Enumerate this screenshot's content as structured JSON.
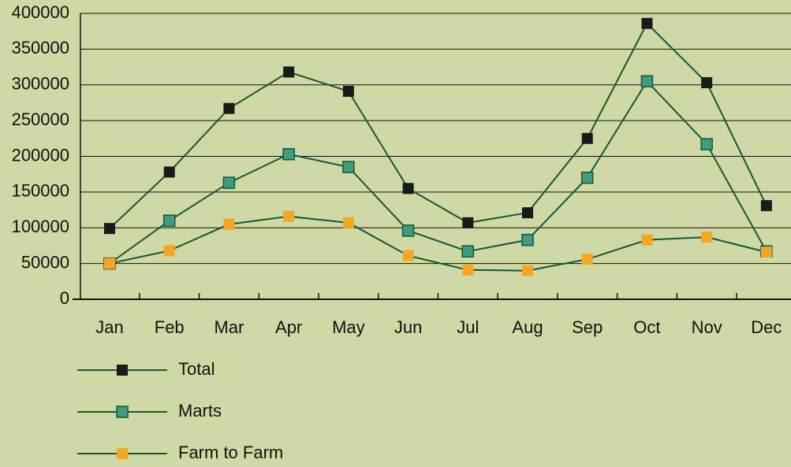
{
  "chart_data": {
    "type": "line",
    "categories": [
      "Jan",
      "Feb",
      "Mar",
      "Apr",
      "May",
      "Jun",
      "Jul",
      "Aug",
      "Sep",
      "Oct",
      "Nov",
      "Dec"
    ],
    "series": [
      {
        "name": "Total",
        "color": "#1a1a1a",
        "values": [
          99000,
          178000,
          267000,
          318000,
          291000,
          155000,
          107000,
          121000,
          225000,
          386000,
          303000,
          131000
        ]
      },
      {
        "name": "Marts",
        "color": "#3f9c80",
        "values": [
          50000,
          110000,
          163000,
          203000,
          185000,
          96000,
          67000,
          83000,
          170000,
          305000,
          217000,
          67000
        ]
      },
      {
        "name": "Farm to Farm",
        "color": "#f5a623",
        "values": [
          50000,
          68000,
          105000,
          116000,
          107000,
          61000,
          41000,
          40000,
          56000,
          83000,
          87000,
          66000
        ]
      }
    ],
    "line_color": "#14573a",
    "ylim": [
      0,
      400000
    ],
    "yticks": [
      0,
      50000,
      100000,
      150000,
      200000,
      250000,
      300000,
      350000,
      400000
    ],
    "grid": true,
    "legend": "bottom-left"
  }
}
